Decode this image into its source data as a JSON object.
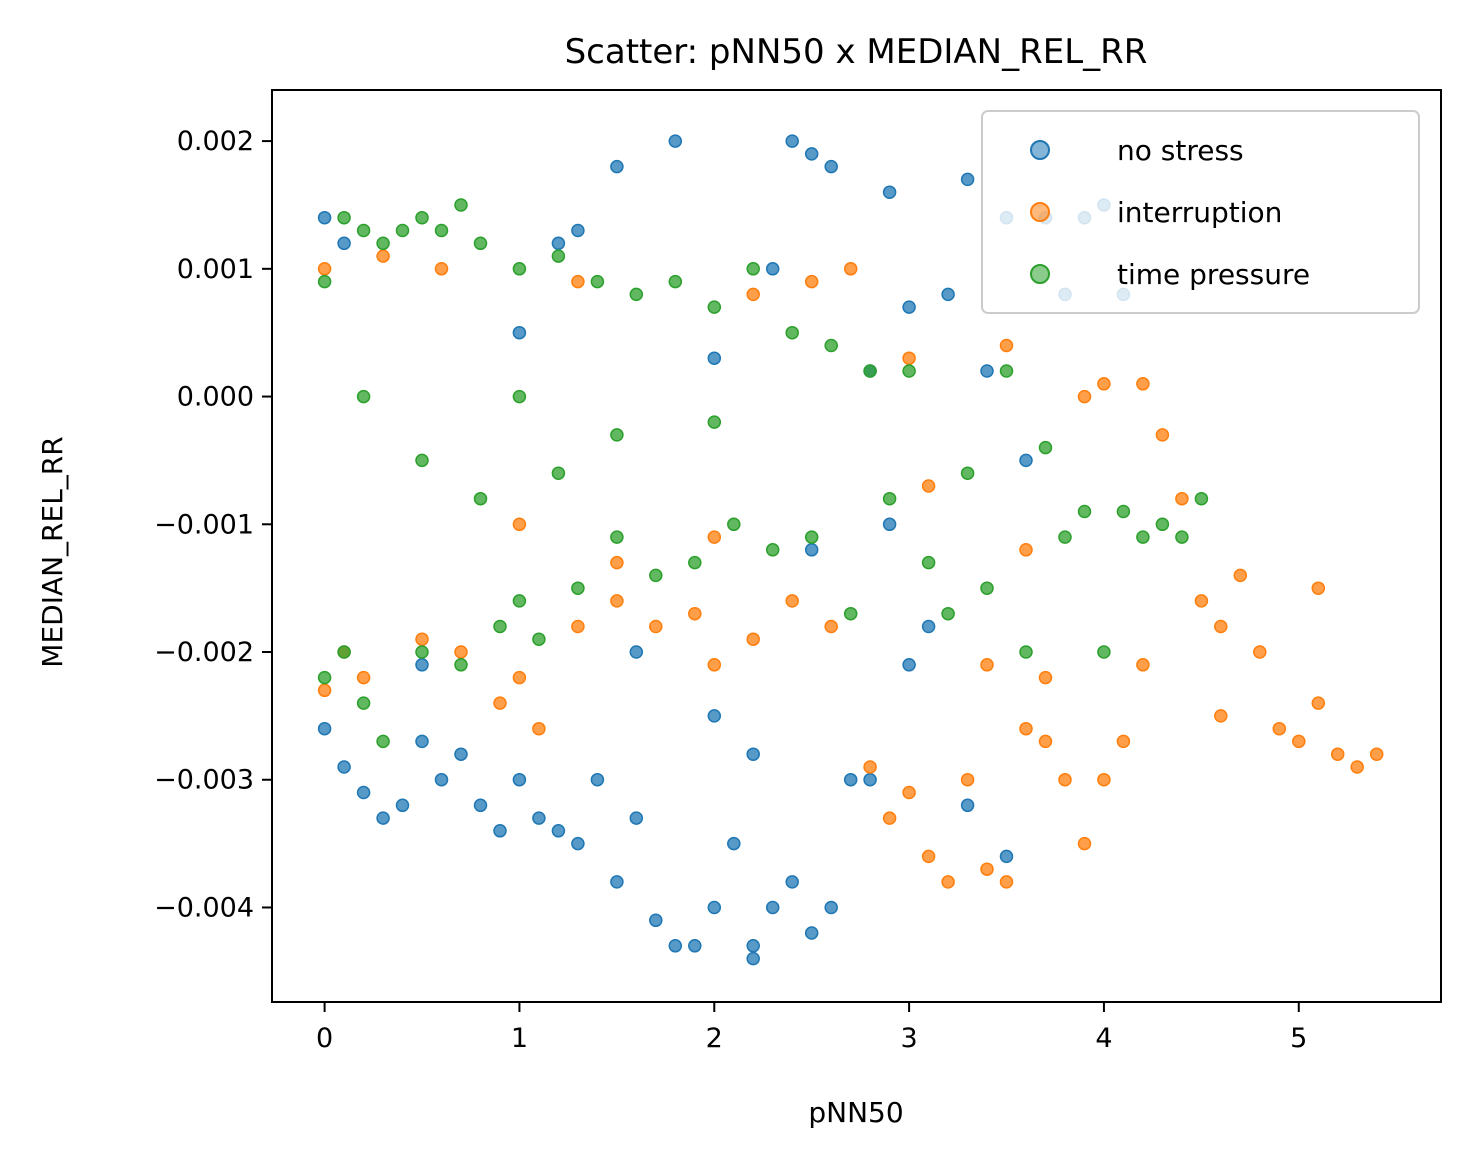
{
  "chart_data": {
    "type": "scatter",
    "title": "Scatter: pNN50 x MEDIAN_REL_RR",
    "xlabel": "pNN50",
    "ylabel": "MEDIAN_REL_RR",
    "xlim": [
      -0.27,
      5.73
    ],
    "ylim": [
      -0.00474,
      0.0024
    ],
    "xticks": [
      0,
      1,
      2,
      3,
      4,
      5
    ],
    "xtick_labels": [
      "0",
      "1",
      "2",
      "3",
      "4",
      "5"
    ],
    "yticks": [
      0.002,
      0.001,
      0.0,
      -0.001,
      -0.002,
      -0.003,
      -0.004
    ],
    "ytick_labels": [
      "0.002",
      "0.001",
      "0.000",
      "−0.001",
      "−0.002",
      "−0.003",
      "−0.004"
    ],
    "grid": false,
    "legend_position": "top-right",
    "series": [
      {
        "name": "no stress",
        "color": "#1f77b4",
        "points": [
          [
            0.0,
            0.0014
          ],
          [
            0.0,
            -0.0026
          ],
          [
            0.1,
            0.0012
          ],
          [
            0.1,
            -0.0029
          ],
          [
            0.2,
            -0.0031
          ],
          [
            0.3,
            -0.0033
          ],
          [
            0.4,
            -0.0032
          ],
          [
            0.5,
            -0.0027
          ],
          [
            0.6,
            -0.003
          ],
          [
            0.7,
            -0.0028
          ],
          [
            0.8,
            -0.0032
          ],
          [
            0.9,
            -0.0034
          ],
          [
            1.0,
            -0.003
          ],
          [
            1.1,
            -0.0033
          ],
          [
            1.2,
            -0.0034
          ],
          [
            1.3,
            -0.0035
          ],
          [
            1.4,
            -0.003
          ],
          [
            1.2,
            0.0012
          ],
          [
            1.3,
            0.0013
          ],
          [
            1.5,
            0.0018
          ],
          [
            1.5,
            -0.0038
          ],
          [
            1.6,
            -0.0033
          ],
          [
            1.7,
            -0.0041
          ],
          [
            1.8,
            -0.0043
          ],
          [
            1.8,
            0.002
          ],
          [
            1.9,
            -0.0043
          ],
          [
            2.0,
            -0.004
          ],
          [
            2.1,
            -0.0035
          ],
          [
            2.2,
            -0.0044
          ],
          [
            2.2,
            -0.0043
          ],
          [
            2.3,
            -0.004
          ],
          [
            2.4,
            0.002
          ],
          [
            2.4,
            -0.0038
          ],
          [
            2.5,
            0.0019
          ],
          [
            2.5,
            -0.0042
          ],
          [
            2.6,
            0.0018
          ],
          [
            2.6,
            -0.004
          ],
          [
            2.7,
            -0.003
          ],
          [
            2.8,
            -0.003
          ],
          [
            2.9,
            0.0016
          ],
          [
            3.0,
            -0.0021
          ],
          [
            3.1,
            -0.0018
          ],
          [
            3.2,
            0.0008
          ],
          [
            3.3,
            0.0017
          ],
          [
            3.3,
            -0.0032
          ],
          [
            3.5,
            0.0014
          ],
          [
            3.5,
            -0.0036
          ],
          [
            3.7,
            0.0014
          ],
          [
            3.8,
            0.0008
          ],
          [
            3.9,
            0.0014
          ],
          [
            4.0,
            0.0015
          ],
          [
            4.1,
            0.0008
          ],
          [
            2.0,
            -0.0025
          ],
          [
            2.2,
            -0.0028
          ],
          [
            1.6,
            -0.002
          ],
          [
            0.5,
            -0.0021
          ],
          [
            1.0,
            0.0005
          ],
          [
            2.0,
            0.0003
          ],
          [
            2.3,
            0.001
          ],
          [
            2.8,
            0.0002
          ],
          [
            3.0,
            0.0007
          ],
          [
            3.4,
            0.0002
          ],
          [
            3.6,
            -0.0005
          ],
          [
            2.9,
            -0.001
          ],
          [
            2.5,
            -0.0012
          ]
        ]
      },
      {
        "name": "interruption",
        "color": "#ff7f0e",
        "points": [
          [
            0.0,
            0.001
          ],
          [
            0.0,
            -0.0023
          ],
          [
            0.1,
            -0.002
          ],
          [
            0.2,
            -0.0022
          ],
          [
            0.3,
            0.0011
          ],
          [
            0.5,
            -0.0019
          ],
          [
            0.7,
            -0.002
          ],
          [
            0.9,
            -0.0024
          ],
          [
            1.0,
            -0.0022
          ],
          [
            1.1,
            -0.0026
          ],
          [
            1.3,
            -0.0018
          ],
          [
            1.5,
            -0.0016
          ],
          [
            1.7,
            -0.0018
          ],
          [
            1.9,
            -0.0017
          ],
          [
            2.0,
            -0.0021
          ],
          [
            2.2,
            -0.0019
          ],
          [
            2.4,
            -0.0016
          ],
          [
            2.5,
            0.0009
          ],
          [
            2.6,
            -0.0018
          ],
          [
            2.7,
            0.001
          ],
          [
            2.8,
            -0.0029
          ],
          [
            2.9,
            -0.0033
          ],
          [
            3.0,
            -0.0031
          ],
          [
            3.1,
            -0.0036
          ],
          [
            3.2,
            -0.0038
          ],
          [
            3.3,
            -0.003
          ],
          [
            3.4,
            -0.0037
          ],
          [
            3.5,
            -0.0038
          ],
          [
            3.6,
            -0.0026
          ],
          [
            3.7,
            -0.0027
          ],
          [
            3.8,
            -0.003
          ],
          [
            3.9,
            -0.0035
          ],
          [
            4.0,
            -0.003
          ],
          [
            4.1,
            -0.0027
          ],
          [
            4.0,
            0.0001
          ],
          [
            4.2,
            0.0001
          ],
          [
            4.3,
            -0.0003
          ],
          [
            4.4,
            -0.0008
          ],
          [
            4.5,
            -0.0016
          ],
          [
            4.6,
            -0.0018
          ],
          [
            4.7,
            -0.0014
          ],
          [
            4.8,
            -0.002
          ],
          [
            4.9,
            -0.0026
          ],
          [
            5.0,
            -0.0027
          ],
          [
            5.1,
            -0.0015
          ],
          [
            5.2,
            -0.0028
          ],
          [
            5.3,
            -0.0029
          ],
          [
            5.4,
            -0.0028
          ],
          [
            3.9,
            0.0
          ],
          [
            3.5,
            0.0004
          ],
          [
            3.0,
            0.0003
          ],
          [
            2.0,
            -0.0011
          ],
          [
            1.5,
            -0.0013
          ],
          [
            1.0,
            -0.001
          ],
          [
            0.6,
            0.001
          ],
          [
            1.3,
            0.0009
          ],
          [
            2.2,
            0.0008
          ],
          [
            3.1,
            -0.0007
          ],
          [
            3.6,
            -0.0012
          ],
          [
            4.2,
            -0.0021
          ],
          [
            4.6,
            -0.0025
          ],
          [
            5.1,
            -0.0024
          ],
          [
            3.4,
            -0.0021
          ],
          [
            3.7,
            -0.0022
          ]
        ]
      },
      {
        "name": "time pressure",
        "color": "#2ca02c",
        "points": [
          [
            0.0,
            0.0009
          ],
          [
            0.0,
            -0.0022
          ],
          [
            0.1,
            0.0014
          ],
          [
            0.1,
            -0.002
          ],
          [
            0.2,
            0.0013
          ],
          [
            0.2,
            -0.0024
          ],
          [
            0.3,
            -0.0027
          ],
          [
            0.3,
            0.0012
          ],
          [
            0.4,
            0.0013
          ],
          [
            0.5,
            0.0014
          ],
          [
            0.5,
            -0.002
          ],
          [
            0.6,
            0.0013
          ],
          [
            0.7,
            0.0015
          ],
          [
            0.7,
            -0.0021
          ],
          [
            0.8,
            0.0012
          ],
          [
            0.9,
            -0.0018
          ],
          [
            1.0,
            0.001
          ],
          [
            1.0,
            -0.0016
          ],
          [
            1.1,
            -0.0019
          ],
          [
            1.2,
            0.0011
          ],
          [
            1.3,
            -0.0015
          ],
          [
            1.4,
            0.0009
          ],
          [
            1.5,
            -0.0011
          ],
          [
            1.6,
            0.0008
          ],
          [
            1.7,
            -0.0014
          ],
          [
            1.8,
            0.0009
          ],
          [
            1.9,
            -0.0013
          ],
          [
            2.0,
            0.0007
          ],
          [
            2.1,
            -0.001
          ],
          [
            2.2,
            0.001
          ],
          [
            2.3,
            -0.0012
          ],
          [
            2.4,
            0.0005
          ],
          [
            2.5,
            -0.0011
          ],
          [
            2.6,
            0.0004
          ],
          [
            2.7,
            -0.0017
          ],
          [
            2.8,
            0.0002
          ],
          [
            2.9,
            -0.0008
          ],
          [
            3.0,
            0.0002
          ],
          [
            3.1,
            -0.0013
          ],
          [
            3.2,
            -0.0017
          ],
          [
            3.3,
            -0.0006
          ],
          [
            3.4,
            -0.0015
          ],
          [
            3.5,
            0.0002
          ],
          [
            3.6,
            -0.002
          ],
          [
            3.7,
            -0.0004
          ],
          [
            3.8,
            -0.0011
          ],
          [
            3.9,
            -0.0009
          ],
          [
            4.0,
            -0.002
          ],
          [
            4.1,
            -0.0009
          ],
          [
            4.2,
            -0.0011
          ],
          [
            4.3,
            -0.001
          ],
          [
            4.4,
            -0.0011
          ],
          [
            4.5,
            -0.0008
          ],
          [
            1.0,
            0.0
          ],
          [
            0.5,
            -0.0005
          ],
          [
            1.5,
            -0.0003
          ],
          [
            2.0,
            -0.0002
          ],
          [
            0.2,
            0.0
          ],
          [
            0.8,
            -0.0008
          ],
          [
            1.2,
            -0.0006
          ]
        ]
      }
    ]
  }
}
